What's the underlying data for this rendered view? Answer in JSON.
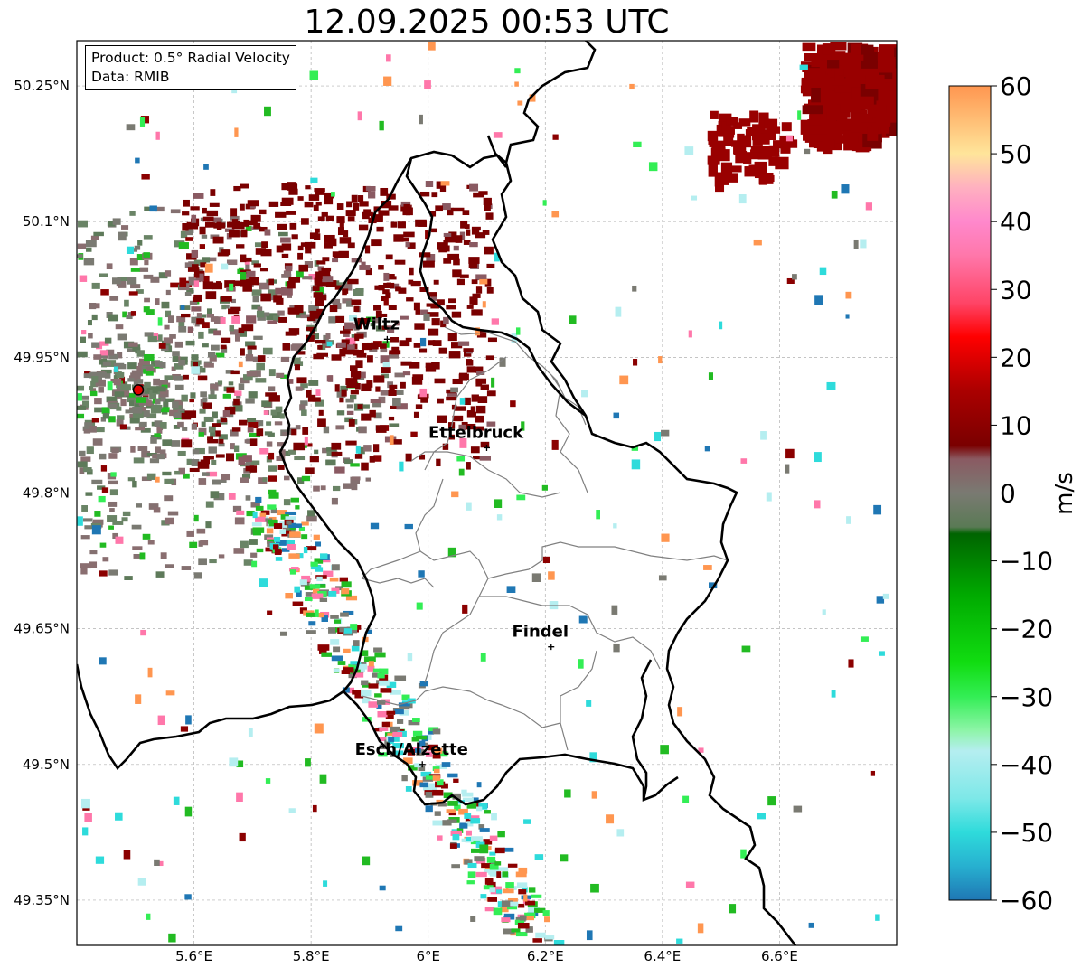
{
  "title": "12.09.2025 00:53 UTC",
  "info": {
    "product": "Product: 0.5° Radial Velocity",
    "data": "Data: RMIB"
  },
  "map": {
    "lon_range": [
      5.4,
      6.8
    ],
    "lat_range": [
      49.3,
      50.3
    ],
    "lon_ticks": [
      {
        "value": 5.6,
        "label": "5.6°E"
      },
      {
        "value": 5.8,
        "label": "5.8°E"
      },
      {
        "value": 6.0,
        "label": "6°E"
      },
      {
        "value": 6.2,
        "label": "6.2°E"
      },
      {
        "value": 6.4,
        "label": "6.4°E"
      },
      {
        "value": 6.6,
        "label": "6.6°E"
      }
    ],
    "lat_ticks": [
      {
        "value": 50.25,
        "label": "50.25°N"
      },
      {
        "value": 50.1,
        "label": "50.1°N"
      },
      {
        "value": 49.95,
        "label": "49.95°N"
      },
      {
        "value": 49.8,
        "label": "49.8°N"
      },
      {
        "value": 49.65,
        "label": "49.65°N"
      },
      {
        "value": 49.5,
        "label": "49.5°N"
      },
      {
        "value": 49.35,
        "label": "49.35°N"
      }
    ],
    "cities": [
      {
        "name": "Wiltz",
        "lon": 5.93,
        "lat": 49.97
      },
      {
        "name": "Ettelbruck",
        "lon": 6.1,
        "lat": 49.85
      },
      {
        "name": "Findel",
        "lon": 6.21,
        "lat": 49.63
      },
      {
        "name": "Esch/Alzette",
        "lon": 5.99,
        "lat": 49.5
      }
    ],
    "radar_site": {
      "lon": 5.505,
      "lat": 49.914
    }
  },
  "colorbar": {
    "label": "m/s",
    "min": -60,
    "max": 60,
    "ticks": [
      {
        "value": 60,
        "label": "60"
      },
      {
        "value": 50,
        "label": "50"
      },
      {
        "value": 40,
        "label": "40"
      },
      {
        "value": 30,
        "label": "30"
      },
      {
        "value": 20,
        "label": "20"
      },
      {
        "value": 10,
        "label": "10"
      },
      {
        "value": 0,
        "label": "0"
      },
      {
        "value": -10,
        "label": "−10"
      },
      {
        "value": -20,
        "label": "−20"
      },
      {
        "value": -30,
        "label": "−30"
      },
      {
        "value": -40,
        "label": "−40"
      },
      {
        "value": -50,
        "label": "−50"
      },
      {
        "value": -60,
        "label": "−60"
      }
    ],
    "color_stops": [
      {
        "value": -60,
        "color": "#1f77b4"
      },
      {
        "value": -55,
        "color": "#27b0d0"
      },
      {
        "value": -50,
        "color": "#2edbdb"
      },
      {
        "value": -45,
        "color": "#7de8e8"
      },
      {
        "value": -38,
        "color": "#b5eef0"
      },
      {
        "value": -35,
        "color": "#8ef5a8"
      },
      {
        "value": -30,
        "color": "#33ee55"
      },
      {
        "value": -25,
        "color": "#11dd11"
      },
      {
        "value": -15,
        "color": "#00aa00"
      },
      {
        "value": -6,
        "color": "#006400"
      },
      {
        "value": -5,
        "color": "#5a7a55"
      },
      {
        "value": 0,
        "color": "#7a7a72"
      },
      {
        "value": 5,
        "color": "#8a5a62"
      },
      {
        "value": 7,
        "color": "#7a0000"
      },
      {
        "value": 15,
        "color": "#aa0000"
      },
      {
        "value": 23,
        "color": "#ff0000"
      },
      {
        "value": 28,
        "color": "#ff4466"
      },
      {
        "value": 35,
        "color": "#ff77aa"
      },
      {
        "value": 40,
        "color": "#ff88cc"
      },
      {
        "value": 45,
        "color": "#ffb0c0"
      },
      {
        "value": 50,
        "color": "#ffe59a"
      },
      {
        "value": 60,
        "color": "#ff9650"
      }
    ]
  }
}
